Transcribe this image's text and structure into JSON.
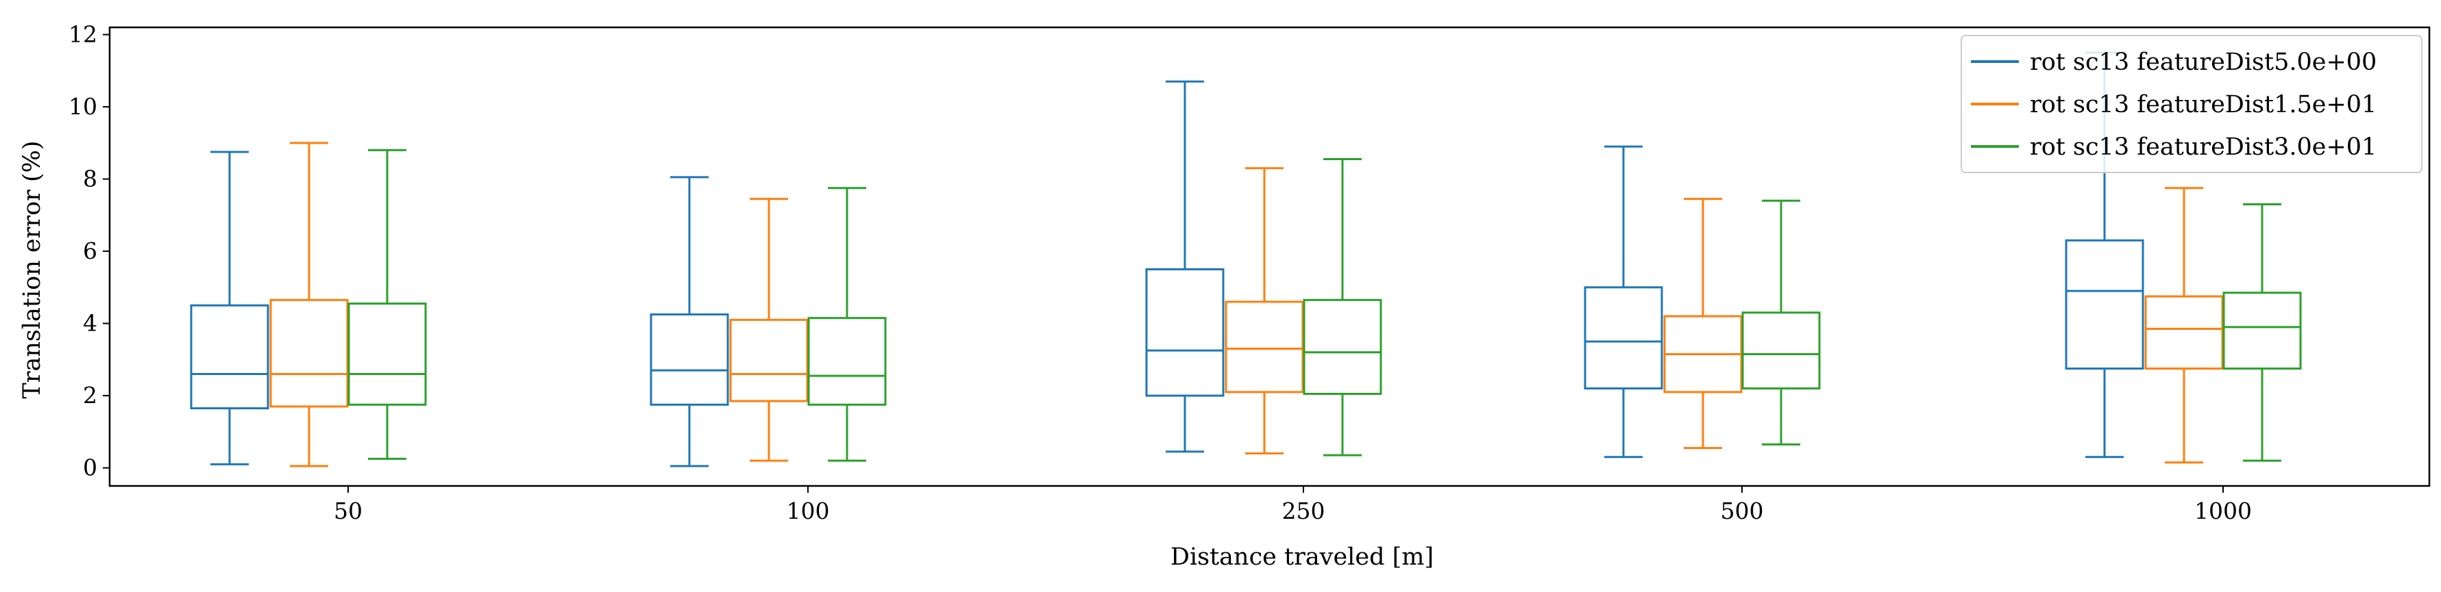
{
  "chart_data": {
    "type": "box",
    "xlabel": "Distance traveled [m]",
    "ylabel": "Translation error (%)",
    "ylim": [
      -0.5,
      12.2
    ],
    "yticks": [
      0,
      2,
      4,
      6,
      8,
      10,
      12
    ],
    "categories": [
      "50",
      "100",
      "250",
      "500",
      "1000"
    ],
    "grid": false,
    "legend_position": "top-right",
    "series": [
      {
        "name": "rot sc13 featureDist5.0e+00",
        "color": "#1f77b4",
        "boxes": [
          {
            "whislo": 0.1,
            "q1": 1.65,
            "med": 2.6,
            "q3": 4.5,
            "whishi": 8.75
          },
          {
            "whislo": 0.05,
            "q1": 1.75,
            "med": 2.7,
            "q3": 4.25,
            "whishi": 8.05
          },
          {
            "whislo": 0.45,
            "q1": 2.0,
            "med": 3.25,
            "q3": 5.5,
            "whishi": 10.7
          },
          {
            "whislo": 0.3,
            "q1": 2.2,
            "med": 3.5,
            "q3": 5.0,
            "whishi": 8.9
          },
          {
            "whislo": 0.3,
            "q1": 2.75,
            "med": 4.9,
            "q3": 6.3,
            "whishi": 11.5
          }
        ]
      },
      {
        "name": "rot sc13 featureDist1.5e+01",
        "color": "#ff7f0e",
        "boxes": [
          {
            "whislo": 0.05,
            "q1": 1.7,
            "med": 2.6,
            "q3": 4.65,
            "whishi": 9.0
          },
          {
            "whislo": 0.2,
            "q1": 1.85,
            "med": 2.6,
            "q3": 4.1,
            "whishi": 7.45
          },
          {
            "whislo": 0.4,
            "q1": 2.1,
            "med": 3.3,
            "q3": 4.6,
            "whishi": 8.3
          },
          {
            "whislo": 0.55,
            "q1": 2.1,
            "med": 3.15,
            "q3": 4.2,
            "whishi": 7.45
          },
          {
            "whislo": 0.15,
            "q1": 2.75,
            "med": 3.85,
            "q3": 4.75,
            "whishi": 7.75
          }
        ]
      },
      {
        "name": "rot sc13 featureDist3.0e+01",
        "color": "#2ca02c",
        "boxes": [
          {
            "whislo": 0.25,
            "q1": 1.75,
            "med": 2.6,
            "q3": 4.55,
            "whishi": 8.8
          },
          {
            "whislo": 0.2,
            "q1": 1.75,
            "med": 2.55,
            "q3": 4.15,
            "whishi": 7.75
          },
          {
            "whislo": 0.35,
            "q1": 2.05,
            "med": 3.2,
            "q3": 4.65,
            "whishi": 8.55
          },
          {
            "whislo": 0.65,
            "q1": 2.2,
            "med": 3.15,
            "q3": 4.3,
            "whishi": 7.4
          },
          {
            "whislo": 0.2,
            "q1": 2.75,
            "med": 3.9,
            "q3": 4.85,
            "whishi": 7.3
          }
        ]
      }
    ]
  }
}
